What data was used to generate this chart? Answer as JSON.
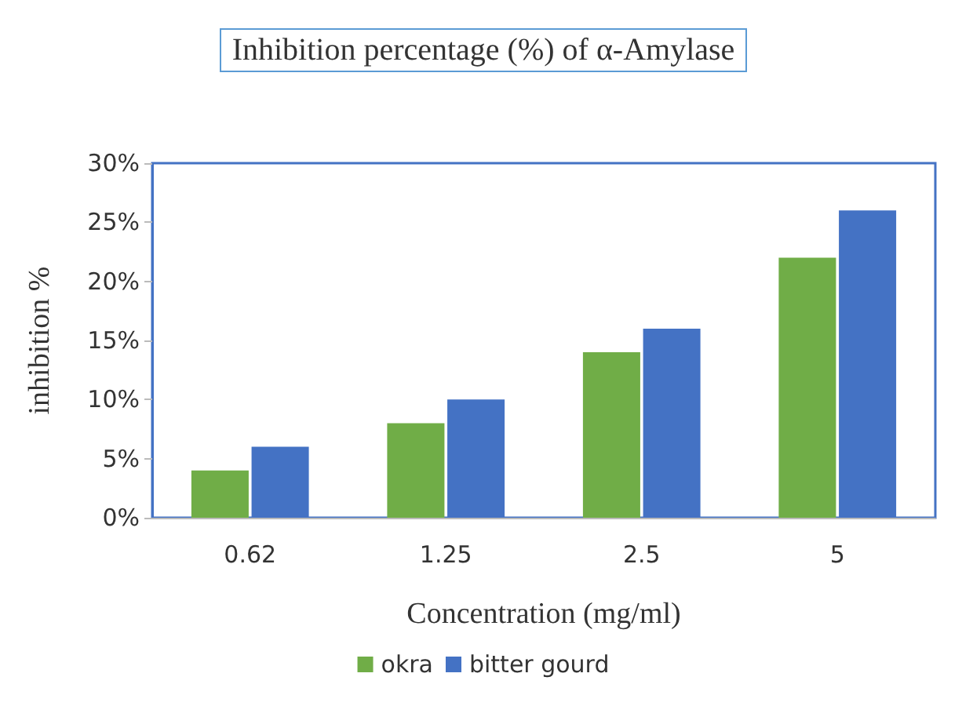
{
  "chart_data": {
    "type": "bar",
    "title": "Inhibition percentage (%) of α-Amylase",
    "xlabel": "Concentration (mg/ml)",
    "ylabel": "inhibition %",
    "categories": [
      "0.62",
      "1.25",
      "2.5",
      "5"
    ],
    "series": [
      {
        "name": "okra",
        "color": "#70ad47",
        "values": [
          4,
          8,
          14,
          22
        ]
      },
      {
        "name": "bitter gourd",
        "color": "#4472c4",
        "values": [
          6,
          10,
          16,
          26
        ]
      }
    ],
    "ylim": [
      0,
      30
    ],
    "yticks": [
      {
        "value": 0,
        "label": "0%"
      },
      {
        "value": 5,
        "label": "5%"
      },
      {
        "value": 10,
        "label": "10%"
      },
      {
        "value": 15,
        "label": "15%"
      },
      {
        "value": 20,
        "label": "20%"
      },
      {
        "value": 25,
        "label": "25%"
      },
      {
        "value": 30,
        "label": "30%"
      }
    ],
    "grid": false,
    "legend": "bottom"
  }
}
